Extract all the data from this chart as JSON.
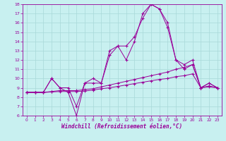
{
  "x_hours": [
    0,
    1,
    2,
    3,
    4,
    5,
    6,
    7,
    8,
    9,
    10,
    11,
    12,
    13,
    14,
    15,
    16,
    17,
    18,
    19,
    20,
    21,
    22,
    23
  ],
  "line1": [
    8.5,
    8.5,
    8.5,
    10.0,
    9.0,
    9.0,
    7.0,
    9.5,
    10.0,
    9.5,
    13.0,
    13.5,
    12.0,
    14.0,
    17.0,
    18.0,
    17.5,
    16.0,
    12.0,
    11.5,
    12.0,
    9.0,
    9.5,
    9.0
  ],
  "line2": [
    8.5,
    8.5,
    8.5,
    10.0,
    9.0,
    8.5,
    6.0,
    9.5,
    9.5,
    9.5,
    12.5,
    13.5,
    13.5,
    14.5,
    16.5,
    18.0,
    17.5,
    15.5,
    12.0,
    11.0,
    11.5,
    9.0,
    9.5,
    9.0
  ],
  "line3": [
    8.5,
    8.5,
    8.5,
    8.6,
    8.7,
    8.7,
    8.7,
    8.8,
    8.9,
    9.1,
    9.3,
    9.5,
    9.7,
    9.9,
    10.1,
    10.3,
    10.5,
    10.7,
    11.0,
    11.2,
    11.5,
    9.0,
    9.2,
    9.0
  ],
  "line4": [
    8.5,
    8.5,
    8.5,
    8.55,
    8.6,
    8.6,
    8.6,
    8.65,
    8.75,
    8.9,
    9.0,
    9.15,
    9.3,
    9.45,
    9.6,
    9.75,
    9.9,
    10.0,
    10.2,
    10.3,
    10.5,
    9.0,
    9.1,
    9.0
  ],
  "line_color": "#990099",
  "bg_color": "#c8f0f0",
  "grid_color": "#a8d8d8",
  "xlim_min": -0.5,
  "xlim_max": 23.5,
  "ylim_min": 6,
  "ylim_max": 18,
  "yticks": [
    6,
    7,
    8,
    9,
    10,
    11,
    12,
    13,
    14,
    15,
    16,
    17,
    18
  ],
  "xticks": [
    0,
    1,
    2,
    3,
    4,
    5,
    6,
    7,
    8,
    9,
    10,
    11,
    12,
    13,
    14,
    15,
    16,
    17,
    18,
    19,
    20,
    21,
    22,
    23
  ],
  "xlabel": "Windchill (Refroidissement éolien,°C)",
  "marker": "+",
  "markersize": 3,
  "linewidth": 0.7
}
